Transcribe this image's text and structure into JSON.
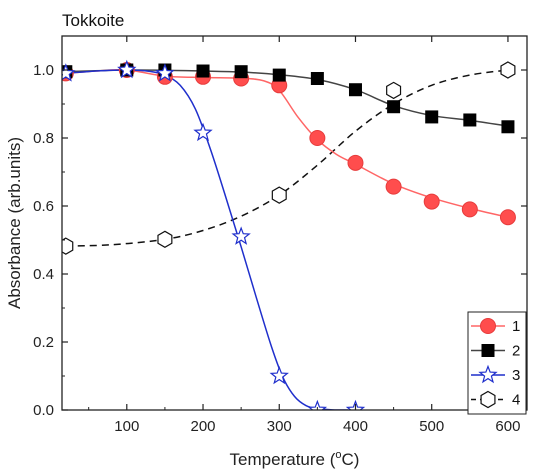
{
  "chart_data": {
    "type": "line",
    "title": "Tokkoite",
    "xlabel": "Temperature (",
    "xlabel_unit": "C)",
    "xlabel_superscript": "o",
    "ylabel": "Absorbance (arb.units)",
    "xlim": [
      15,
      625
    ],
    "ylim": [
      0,
      1.1
    ],
    "xticks": [
      100,
      200,
      300,
      400,
      500,
      600
    ],
    "yticks": [
      0.0,
      0.2,
      0.4,
      0.6,
      0.8,
      1.0
    ],
    "xtick_labels": [
      "100",
      "200",
      "300",
      "400",
      "500",
      "600"
    ],
    "ytick_labels": [
      "0.0",
      "0.2",
      "0.4",
      "0.6",
      "0.8",
      "1.0"
    ],
    "grid": false,
    "legend_position": "bottom-right",
    "series": [
      {
        "name": "1",
        "color": "#ff4d4d",
        "line_color": "#ff6666",
        "marker": "circle",
        "line_style": "solid",
        "x": [
          20,
          100,
          150,
          200,
          250,
          300,
          350,
          400,
          450,
          500,
          550,
          600
        ],
        "y": [
          0.99,
          1.0,
          0.98,
          0.98,
          0.975,
          0.955,
          0.8,
          0.727,
          0.657,
          0.613,
          0.59,
          0.567
        ],
        "curve": [
          [
            20,
            0.99
          ],
          [
            60,
            0.997
          ],
          [
            100,
            1.0
          ],
          [
            150,
            0.982
          ],
          [
            200,
            0.978
          ],
          [
            250,
            0.976
          ],
          [
            280,
            0.968
          ],
          [
            300,
            0.94
          ],
          [
            325,
            0.86
          ],
          [
            350,
            0.795
          ],
          [
            375,
            0.752
          ],
          [
            400,
            0.723
          ],
          [
            450,
            0.665
          ],
          [
            500,
            0.624
          ],
          [
            550,
            0.593
          ],
          [
            600,
            0.567
          ]
        ]
      },
      {
        "name": "2",
        "color": "#000000",
        "line_color": "#444444",
        "marker": "square",
        "line_style": "solid",
        "x": [
          20,
          100,
          150,
          200,
          250,
          300,
          350,
          400,
          450,
          500,
          550,
          600
        ],
        "y": [
          0.995,
          1.0,
          1.0,
          0.997,
          0.995,
          0.985,
          0.975,
          0.942,
          0.892,
          0.862,
          0.853,
          0.833
        ],
        "curve": [
          [
            20,
            0.995
          ],
          [
            100,
            1.0
          ],
          [
            150,
            0.999
          ],
          [
            200,
            0.997
          ],
          [
            250,
            0.994
          ],
          [
            300,
            0.986
          ],
          [
            350,
            0.972
          ],
          [
            400,
            0.942
          ],
          [
            450,
            0.895
          ],
          [
            500,
            0.866
          ],
          [
            550,
            0.852
          ],
          [
            600,
            0.835
          ]
        ]
      },
      {
        "name": "3",
        "color": "#1f2fcc",
        "line_color": "#1f2fcc",
        "marker": "star",
        "line_style": "solid",
        "x": [
          20,
          100,
          150,
          200,
          250,
          300,
          350,
          400
        ],
        "y": [
          0.99,
          1.0,
          0.99,
          0.815,
          0.51,
          0.1,
          0.0,
          0.0
        ],
        "curve": [
          [
            20,
            0.99
          ],
          [
            60,
            0.997
          ],
          [
            100,
            1.0
          ],
          [
            130,
            0.996
          ],
          [
            150,
            0.985
          ],
          [
            170,
            0.955
          ],
          [
            190,
            0.885
          ],
          [
            210,
            0.765
          ],
          [
            230,
            0.625
          ],
          [
            250,
            0.48
          ],
          [
            270,
            0.33
          ],
          [
            290,
            0.185
          ],
          [
            305,
            0.095
          ],
          [
            320,
            0.04
          ],
          [
            335,
            0.013
          ],
          [
            350,
            0.004
          ],
          [
            370,
            0.0005
          ],
          [
            390,
            0.0
          ]
        ]
      },
      {
        "name": "4",
        "color": "#111111",
        "line_color": "#111111",
        "marker": "hexagon",
        "line_style": "dashed",
        "x": [
          20,
          150,
          300,
          450,
          600
        ],
        "y": [
          0.482,
          0.502,
          0.632,
          0.94,
          1.0
        ],
        "curve": [
          [
            20,
            0.482
          ],
          [
            80,
            0.486
          ],
          [
            150,
            0.502
          ],
          [
            200,
            0.528
          ],
          [
            250,
            0.57
          ],
          [
            300,
            0.632
          ],
          [
            350,
            0.72
          ],
          [
            400,
            0.82
          ],
          [
            450,
            0.9
          ],
          [
            500,
            0.955
          ],
          [
            550,
            0.985
          ],
          [
            600,
            1.0
          ]
        ]
      }
    ]
  }
}
